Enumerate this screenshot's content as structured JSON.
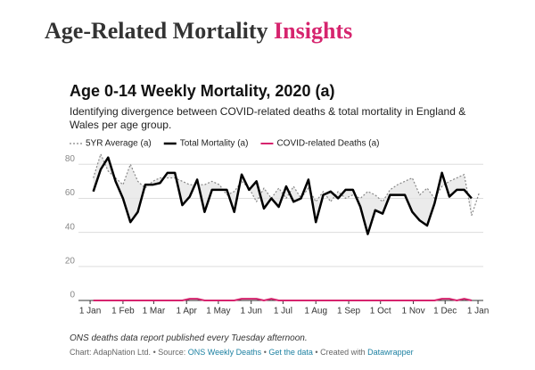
{
  "header": {
    "title": "Age-Related Mortality",
    "highlight": "Insights"
  },
  "chart_data": {
    "type": "line",
    "title": "Age 0-14 Weekly Mortality, 2020 (a)",
    "subtitle": "Identifying divergence between COVID-related deaths & total mortality in England & Wales per age group.",
    "x": [
      3,
      10,
      17,
      24,
      31,
      38,
      45,
      52,
      59,
      66,
      73,
      80,
      87,
      94,
      101,
      108,
      115,
      122,
      129,
      136,
      143,
      150,
      157,
      164,
      171,
      178,
      185,
      192,
      199,
      206,
      213,
      220,
      227,
      234,
      241,
      248,
      255,
      262,
      269,
      276,
      283,
      290,
      297,
      304,
      311,
      318,
      325,
      332,
      339,
      346,
      353,
      360,
      367
    ],
    "series": [
      {
        "name": "5YR Average (a)",
        "color": "#888888",
        "dash": true,
        "values": [
          72,
          86,
          76,
          72,
          68,
          80,
          70,
          66,
          70,
          72,
          72,
          72,
          70,
          68,
          68,
          68,
          70,
          68,
          62,
          64,
          70,
          66,
          58,
          66,
          60,
          66,
          60,
          67,
          60,
          66,
          58,
          64,
          58,
          64,
          60,
          62,
          60,
          64,
          62,
          58,
          65,
          68,
          70,
          72,
          62,
          66,
          60,
          67,
          70,
          72,
          74,
          50,
          63
        ]
      },
      {
        "name": "Total Mortality (a)",
        "color": "#000000",
        "values": [
          64,
          77,
          84,
          70,
          60,
          46,
          52,
          68,
          68,
          69,
          75,
          75,
          56,
          61,
          71,
          52,
          65,
          65,
          65,
          52,
          74,
          65,
          70,
          54,
          60,
          55,
          67,
          58,
          60,
          71,
          46,
          62,
          64,
          60,
          65,
          65,
          55,
          39,
          53,
          51,
          62,
          62,
          62,
          52,
          47,
          44,
          57,
          75,
          61,
          65,
          65,
          60,
          null
        ]
      },
      {
        "name": "COVID-related Deaths (a)",
        "color": "#d6246e",
        "values": [
          0,
          0,
          0,
          0,
          0,
          0,
          0,
          0,
          0,
          0,
          0,
          0,
          0,
          1,
          1,
          0,
          0,
          0,
          0,
          0,
          1,
          1,
          1,
          0,
          1,
          0,
          0,
          0,
          0,
          0,
          0,
          0,
          0,
          0,
          0,
          0,
          0,
          0,
          0,
          0,
          0,
          0,
          0,
          0,
          0,
          0,
          0,
          1,
          1,
          0,
          1,
          0,
          null
        ]
      }
    ],
    "xlim": [
      -11,
      371
    ],
    "xticks": [
      {
        "value": 0,
        "label": "1 Jan"
      },
      {
        "value": 31,
        "label": "1 Feb"
      },
      {
        "value": 60,
        "label": "1 Mar"
      },
      {
        "value": 91,
        "label": "1 Apr"
      },
      {
        "value": 121,
        "label": "1 May"
      },
      {
        "value": 152,
        "label": "1 Jun"
      },
      {
        "value": 182,
        "label": "1 Jul"
      },
      {
        "value": 213,
        "label": "1 Aug"
      },
      {
        "value": 244,
        "label": "1 Sep"
      },
      {
        "value": 274,
        "label": "1 Oct"
      },
      {
        "value": 305,
        "label": "1 Nov"
      },
      {
        "value": 335,
        "label": "1 Dec"
      },
      {
        "value": 366,
        "label": "1 Jan"
      }
    ],
    "ylim": [
      0,
      88
    ],
    "yticks": [
      0,
      20,
      40,
      60,
      80
    ],
    "grid": true,
    "note": "ONS deaths data report published every Tuesday afternoon.",
    "credit": {
      "author": "Chart: AdapNation Ltd.",
      "separator": "•",
      "source_label": "Source:",
      "source": "ONS Weekly Deaths",
      "get_data": "Get the data",
      "created": "Created with",
      "tool": "Datawrapper"
    }
  }
}
